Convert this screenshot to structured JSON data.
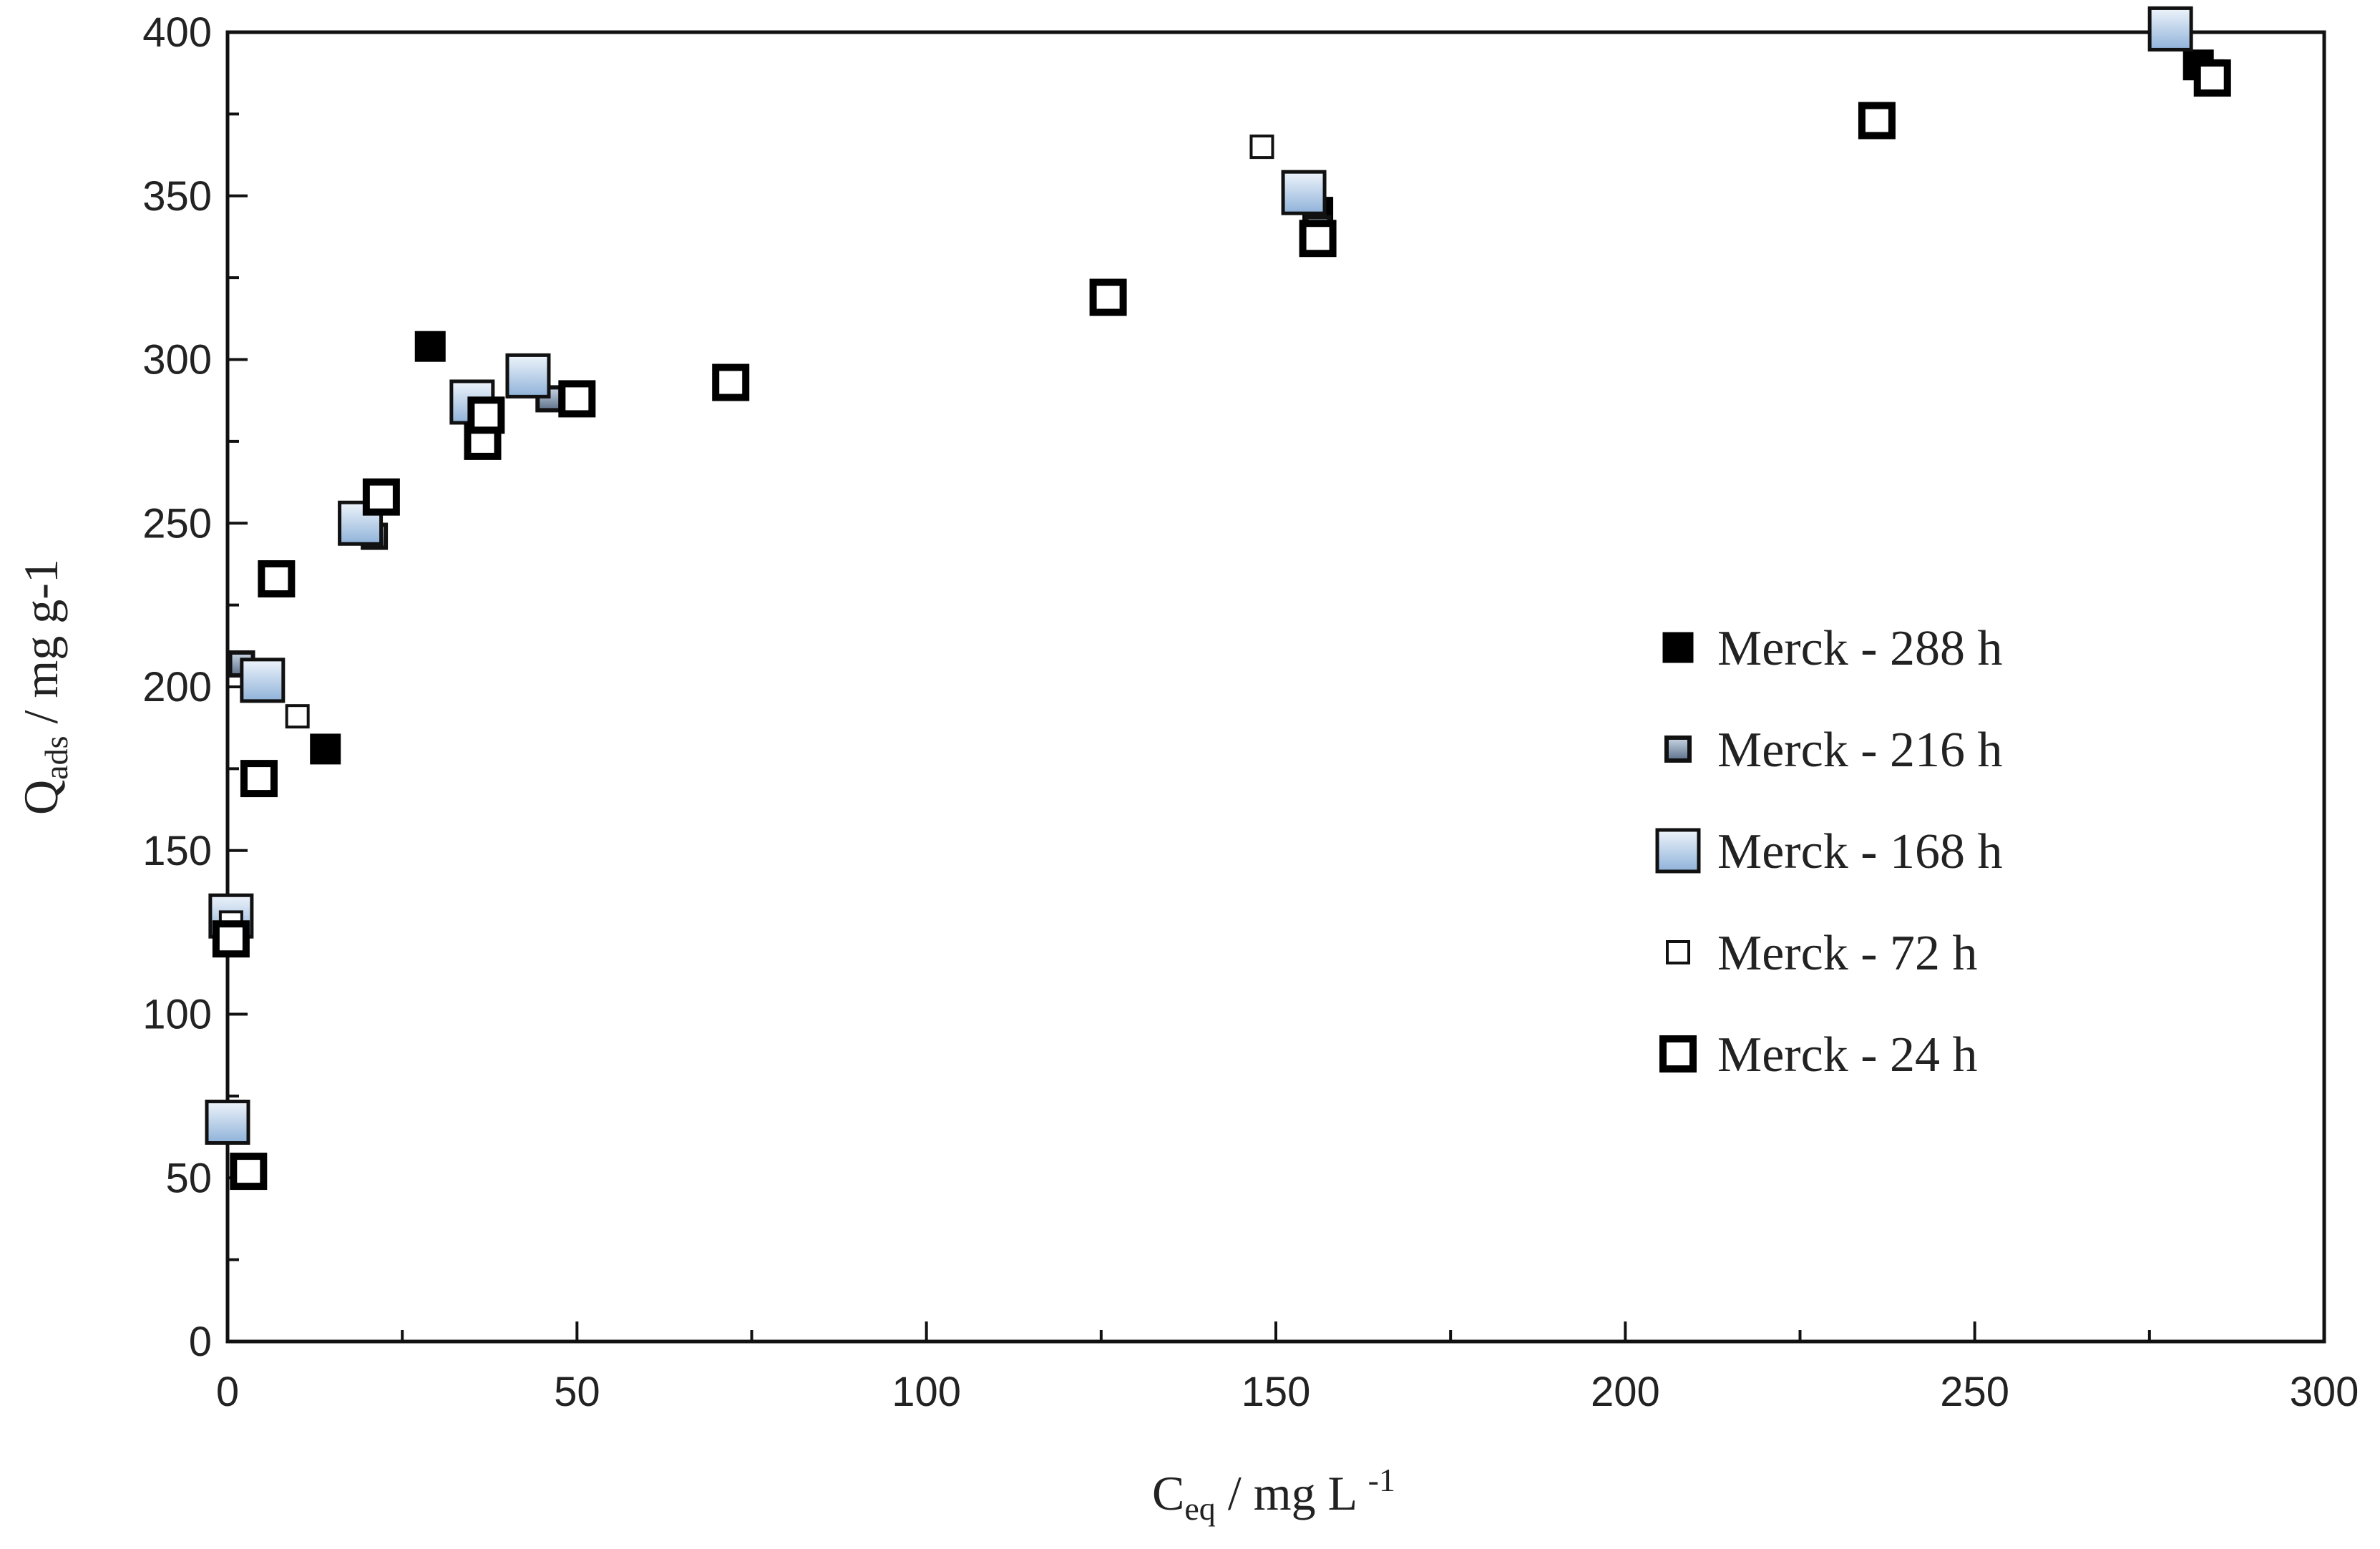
{
  "chart_data": {
    "type": "scatter",
    "title": "",
    "xlabel": {
      "main": "C",
      "sub": "eq",
      "rest": " / mg L ",
      "sup": "-1"
    },
    "ylabel": {
      "main": "Q",
      "sub": "ads",
      "rest": " / mg g-1"
    },
    "xlim": [
      0,
      300
    ],
    "ylim": [
      0,
      400
    ],
    "xticks": [
      "0",
      "50",
      "100",
      "150",
      "200",
      "250",
      "300"
    ],
    "yticks": [
      "0",
      "50",
      "100",
      "150",
      "200",
      "250",
      "300",
      "350",
      "400"
    ],
    "legend_position": "right-center",
    "grid": false,
    "series": [
      {
        "name": "Merck - 288 h",
        "marker": "filled-black",
        "points": [
          [
            14,
            181
          ],
          [
            29,
            304
          ],
          [
            156,
            345
          ],
          [
            282,
            390
          ]
        ]
      },
      {
        "name": "Merck - 216 h",
        "marker": "gray-gradient-small",
        "points": [
          [
            2,
            207
          ],
          [
            21,
            246
          ],
          [
            46,
            288
          ],
          [
            156,
            340
          ],
          [
            284,
            387
          ]
        ]
      },
      {
        "name": "Merck - 168 h",
        "marker": "blue-gradient-large",
        "points": [
          [
            0,
            67
          ],
          [
            0.5,
            130
          ],
          [
            5,
            202
          ],
          [
            19,
            250
          ],
          [
            35,
            287
          ],
          [
            43,
            295
          ],
          [
            154,
            351
          ],
          [
            278,
            401
          ]
        ]
      },
      {
        "name": "Merck - 72 h",
        "marker": "hollow-thin",
        "points": [
          [
            0.5,
            128
          ],
          [
            10,
            191
          ],
          [
            148,
            365
          ],
          [
            284,
            388
          ]
        ]
      },
      {
        "name": "Merck - 24 h",
        "marker": "hollow-thick",
        "points": [
          [
            3,
            52
          ],
          [
            0.5,
            123
          ],
          [
            4.5,
            172
          ],
          [
            7,
            233
          ],
          [
            22,
            258
          ],
          [
            36.5,
            275
          ],
          [
            37,
            283
          ],
          [
            50,
            288
          ],
          [
            72,
            293
          ],
          [
            126,
            319
          ],
          [
            156,
            337
          ],
          [
            236,
            373
          ],
          [
            284,
            386
          ]
        ]
      }
    ]
  }
}
